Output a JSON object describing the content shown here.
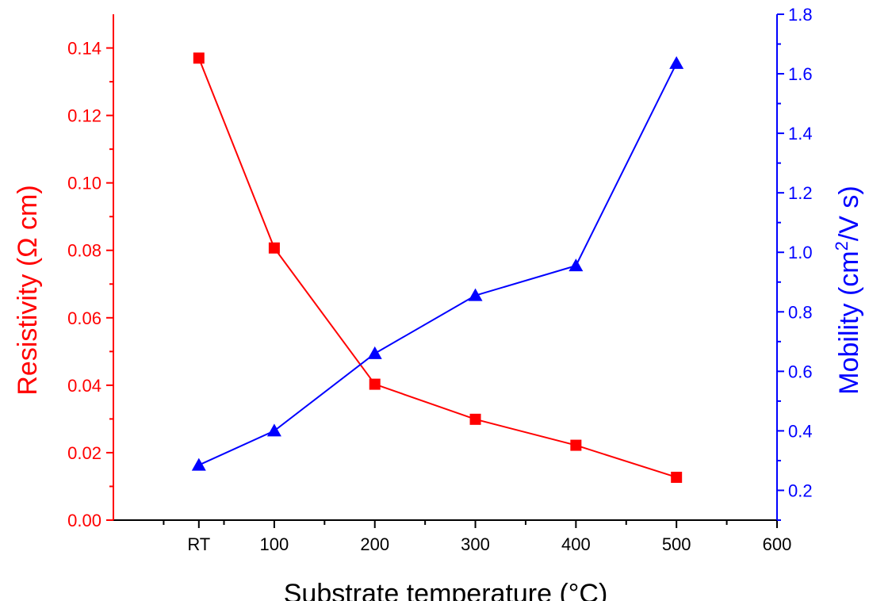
{
  "chart_data": {
    "type": "line",
    "xlabel": "Substrate temperature (°C)",
    "x_ticks": [
      "RT",
      "100",
      "200",
      "300",
      "400",
      "500",
      "600"
    ],
    "x": [
      25,
      100,
      200,
      300,
      400,
      500
    ],
    "xlim": [
      -60,
      600
    ],
    "y_left": {
      "label_main": "Resistivity (Ω cm)",
      "ylim": [
        0,
        0.15
      ],
      "ticks": [
        "0.00",
        "0.02",
        "0.04",
        "0.06",
        "0.08",
        "0.10",
        "0.12",
        "0.14"
      ],
      "color": "#ff0000"
    },
    "y_right": {
      "label_main": "Mobility (cm",
      "label_sup": "2",
      "label_tail": "/V s)",
      "ylim": [
        0.1,
        1.8
      ],
      "ticks": [
        "0.2",
        "0.4",
        "0.6",
        "0.8",
        "1.0",
        "1.2",
        "1.4",
        "1.6",
        "1.8"
      ],
      "color": "#0000ff"
    },
    "series": [
      {
        "axis": "left",
        "marker": "square",
        "color": "#ff0000",
        "values": [
          0.137,
          0.0807,
          0.0403,
          0.0299,
          0.0222,
          0.0127
        ]
      },
      {
        "axis": "right",
        "marker": "triangle",
        "color": "#0000ff",
        "values": [
          0.285,
          0.4,
          0.66,
          0.855,
          0.955,
          1.635
        ]
      }
    ],
    "grid": false,
    "legend": "none"
  }
}
